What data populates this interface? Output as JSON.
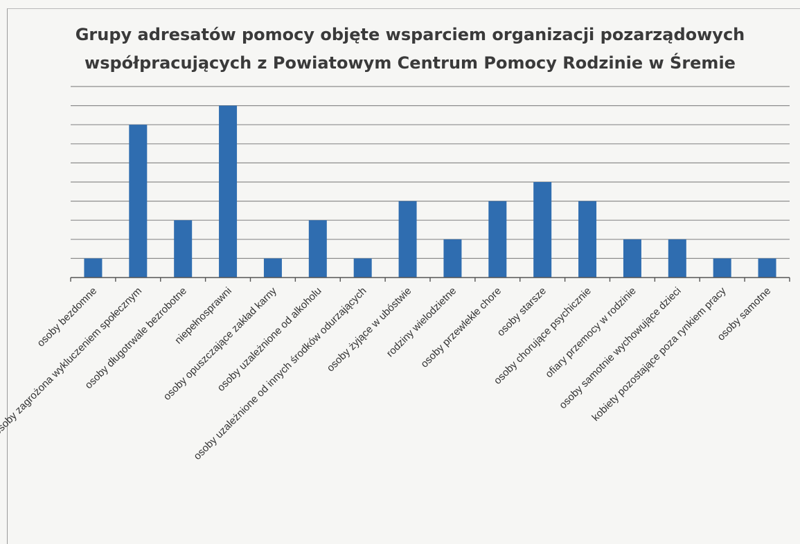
{
  "chart_data": {
    "type": "bar",
    "title_lines": [
      "Grupy adresatów pomocy objęte wsparciem organizacji pozarządowych",
      "współpracujących z Powiatowym Centrum Pomocy Rodzinie w Śremie"
    ],
    "categories": [
      "osoby bezdomne",
      "osoby zagrożona wykluczeniem społecznym",
      "osoby długotrwale bezrobotne",
      "niepełnosprawni",
      "osoby opuszczające zakład karny",
      "osoby uzależnione od alkoholu",
      "osoby uzależnione od innych środków odurzających",
      "osoby żyjące w ubóstwie",
      "rodziny wielodzietne",
      "osoby przewlekłe chore",
      "osoby starsze",
      "osoby chorujące psychicznie",
      "ofiary przemocy w rodzinie",
      "osoby samotnie wychowujące dzieci",
      "kobiety pozostające poza rynkiem pracy",
      "osoby samotne"
    ],
    "values": [
      1,
      8,
      3,
      9,
      1,
      3,
      1,
      4,
      2,
      4,
      5,
      4,
      2,
      2,
      1,
      1
    ],
    "ylim": [
      0,
      10
    ],
    "grid": true,
    "legend": "none",
    "bar_color": "#2f6db0"
  }
}
